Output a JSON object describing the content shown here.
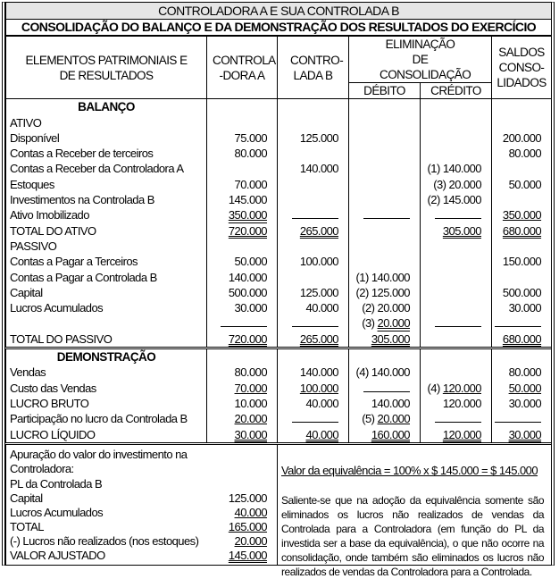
{
  "title": "CONTROLADORA A E SUA CONTROLADA B",
  "subtitle": "CONSOLIDAÇÃO DO BALANÇO E DA DEMONSTRAÇÃO DOS RESULTADOS DO EXERCÍCIO",
  "headers": {
    "elementos": "ELEMENTOS PATRIMONIAIS E DE RESULTADOS",
    "controladora": "CONTROLA -DORA A",
    "controlada": "CONTRO- LADA B",
    "eliminacao": "ELIMINAÇÃO DE CONSOLIDAÇÃO",
    "debito": "DÉBITO",
    "credito": "CRÉDITO",
    "saldos": "SALDOS CONSO- LIDADOS"
  },
  "sections": {
    "balanco": "BALANÇO",
    "demonstracao": "DEMONSTRAÇÃO"
  },
  "balanco_rows": [
    {
      "c": [
        "ATIVO",
        "",
        "",
        "",
        "",
        ""
      ]
    },
    {
      "c": [
        "Disponível",
        "75.000",
        "125.000",
        "",
        "",
        "200.000"
      ]
    },
    {
      "c": [
        "Contas a Receber de terceiros",
        "80.000",
        "",
        "",
        "",
        "80.000"
      ]
    },
    {
      "c": [
        "Contas a Receber da Controladora A",
        "",
        "140.000",
        "",
        "(1) 140.000",
        ""
      ]
    },
    {
      "c": [
        "Estoques",
        "70.000",
        "",
        "",
        "(3) 20.000",
        "50.000"
      ]
    },
    {
      "c": [
        "Investimentos na Controlada B",
        "145.000",
        "",
        "",
        "(2) 145.000",
        ""
      ]
    },
    {
      "c": [
        "Ativo Imobilizado",
        "350.000",
        "",
        "",
        "",
        "350.000"
      ],
      "s": [
        "",
        "uu",
        "line",
        "line",
        "line",
        "u"
      ]
    },
    {
      "c": [
        "TOTAL DO ATIVO",
        "720.000",
        "265.000",
        "",
        "305.000",
        "680.000"
      ],
      "s": [
        "",
        "uu",
        "uu",
        "",
        "uu",
        "uu"
      ]
    },
    {
      "c": [
        "PASSIVO",
        "",
        "",
        "",
        "",
        ""
      ]
    },
    {
      "c": [
        "Contas a Pagar a Terceiros",
        "50.000",
        "100.000",
        "",
        "",
        "150.000"
      ]
    },
    {
      "c": [
        "Contas a Pagar a Controlada B",
        "140.000",
        "",
        "(1) 140.000",
        "",
        ""
      ]
    },
    {
      "c": [
        "Capital",
        "500.000",
        "125.000",
        "(2) 125.000",
        "",
        "500.000"
      ]
    },
    {
      "c": [
        "Lucros Acumulados",
        "30.000",
        "40.000",
        "(2) 20.000",
        "",
        "30.000"
      ]
    },
    {
      "c": [
        "",
        "",
        "",
        "(3) 20.000",
        "",
        ""
      ],
      "s": [
        "",
        "line",
        "line",
        "uu",
        "line",
        "line"
      ]
    },
    {
      "c": [
        "TOTAL DO PASSIVO",
        "720.000",
        "265.000",
        "305.000",
        "",
        "680.000"
      ],
      "s": [
        "",
        "uu",
        "uu",
        "uu",
        "",
        "uu"
      ]
    }
  ],
  "demonstracao_rows": [
    {
      "c": [
        "Vendas",
        "80.000",
        "140.000",
        "(4) 140.000",
        "",
        "80.000"
      ]
    },
    {
      "c": [
        "Custo das Vendas",
        "70.000",
        "100.000",
        "",
        "(4) 120.000",
        "50.000"
      ],
      "s": [
        "",
        "u",
        "u",
        "line",
        "u",
        "u"
      ]
    },
    {
      "c": [
        "LUCRO BRUTO",
        "10.000",
        "40.000",
        "140.000",
        "120.000",
        "30.000"
      ]
    },
    {
      "c": [
        "Participação no lucro da Controlada B",
        "20.000",
        "",
        "(5) 20.000",
        "",
        ""
      ],
      "s": [
        "",
        "u",
        "line",
        "u",
        "line",
        "line"
      ]
    },
    {
      "c": [
        "LUCRO LÍQUIDO",
        "30.000",
        "40.000",
        "160.000",
        "120.000",
        "30.000"
      ],
      "s": [
        "",
        "uu",
        "uu",
        "uu",
        "uu",
        "uu"
      ]
    }
  ],
  "apuracao": {
    "intro": [
      "Apuração do valor do investimento na",
      "Controladora:",
      "PL da Controlada B"
    ],
    "lines": [
      {
        "label": "Capital",
        "value": "125.000",
        "s": ""
      },
      {
        "label": "Lucros Acumulados",
        "value": "40.000",
        "s": "u"
      },
      {
        "label": "TOTAL",
        "value": "165.000",
        "s": "u"
      },
      {
        "label": "(-) Lucros não realizados (nos estoques)",
        "value": "20.000",
        "s": "u"
      },
      {
        "label": "VALOR AJUSTADO",
        "value": "145.000",
        "s": "uu"
      }
    ]
  },
  "equivalencia": "Valor da equivalência = 100% x $ 145.000 = $ 145.000",
  "nota": "Saliente-se que na adoção da equivalência somente são eliminados os lucros não realizados de vendas da Controlada para a Controladora (em função do PL da investida ser a base da equivalência), o que não ocorre na consolidação, onde também são eliminados os lucros não realizados de vendas da Controladora para a Controlada."
}
